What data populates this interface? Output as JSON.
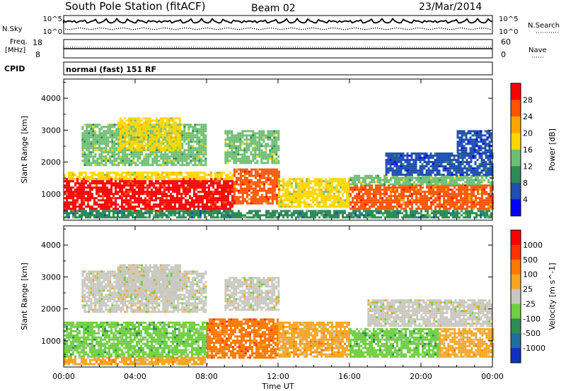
{
  "header": {
    "station": "South Pole Station (fitACF)",
    "beam": "Beam 02",
    "date": "23/Mar/2014"
  },
  "top_strip": {
    "nsky_label": "N.Sky",
    "nsky_ticks": [
      "10^5",
      "10^0"
    ],
    "nsearch_label": "N.Search",
    "nsearch_ticks": [
      "10^5",
      "10^0"
    ],
    "freq_label_1": "Freq.",
    "freq_label_2": "[MHz]",
    "freq_ticks": [
      "18",
      "8"
    ],
    "nave_label": "Nave",
    "nave_ticks": [
      "60",
      "0"
    ],
    "cpid_label": "CPID",
    "cpid_value": "normal (fast) 151 RF"
  },
  "colors": {
    "power_scale": [
      "#0000ff",
      "#1f4faf",
      "#2e8b57",
      "#6fbf73",
      "#ffd700",
      "#ffa500",
      "#ff5500",
      "#ff0000"
    ],
    "velocity_scale": [
      "#1030c0",
      "#1e6f9f",
      "#2e8b57",
      "#6fcf40",
      "#c8c8c0",
      "#f5a623",
      "#ff7700",
      "#ff3300",
      "#ff0000"
    ]
  },
  "chart_data": [
    {
      "type": "heatmap",
      "xlabel": "Time UT",
      "ylabel": "Slant Range [km]",
      "x_ticks": [
        "00:00",
        "04:00",
        "08:00",
        "12:00",
        "16:00",
        "20:00",
        "00:00"
      ],
      "xlim": [
        0,
        24
      ],
      "y_ticks": [
        "1000",
        "2000",
        "3000",
        "4000"
      ],
      "ylim": [
        180,
        4600
      ],
      "colorbar_label": "Power [dB]",
      "colorbar_ticks": [
        "28",
        "24",
        "20",
        "16",
        "12",
        "8",
        "4"
      ],
      "clim": [
        0,
        32
      ],
      "regions": [
        {
          "t0": 0,
          "t1": 9.5,
          "r0": 500,
          "r1": 1500,
          "value": 28
        },
        {
          "t0": 0,
          "t1": 9.5,
          "r0": 1500,
          "r1": 1700,
          "value": 18
        },
        {
          "t0": 9.5,
          "t1": 12,
          "r0": 700,
          "r1": 1800,
          "value": 26
        },
        {
          "t0": 12,
          "t1": 16,
          "r0": 600,
          "r1": 1500,
          "value": 16
        },
        {
          "t0": 16,
          "t1": 24,
          "r0": 550,
          "r1": 1300,
          "value": 26
        },
        {
          "t0": 16,
          "t1": 24,
          "r0": 1300,
          "r1": 1600,
          "value": 12
        },
        {
          "t0": 0,
          "t1": 24,
          "r0": 250,
          "r1": 500,
          "value": 10
        },
        {
          "t0": 1,
          "t1": 8,
          "r0": 1900,
          "r1": 3200,
          "value": 14
        },
        {
          "t0": 3,
          "t1": 6.5,
          "r0": 2400,
          "r1": 3400,
          "value": 16
        },
        {
          "t0": 9,
          "t1": 12,
          "r0": 2000,
          "r1": 3000,
          "value": 14
        },
        {
          "t0": 18,
          "t1": 24,
          "r0": 1600,
          "r1": 2300,
          "value": 6
        },
        {
          "t0": 22,
          "t1": 24,
          "r0": 2300,
          "r1": 3000,
          "value": 6
        }
      ]
    },
    {
      "type": "heatmap",
      "xlabel": "Time UT",
      "ylabel": "Slant Range [km]",
      "x_ticks": [
        "00:00",
        "04:00",
        "08:00",
        "12:00",
        "16:00",
        "20:00",
        "00:00"
      ],
      "xlim": [
        0,
        24
      ],
      "y_ticks": [
        "1000",
        "2000",
        "3000",
        "4000"
      ],
      "ylim": [
        180,
        4600
      ],
      "colorbar_label": "Velocity [m s^-1]",
      "colorbar_ticks": [
        "1000",
        "500",
        "100",
        "25",
        "-25",
        "-100",
        "-500",
        "-1000"
      ],
      "clim": [
        -1200,
        1200
      ],
      "regions": [
        {
          "t0": 0,
          "t1": 8,
          "r0": 500,
          "r1": 1600,
          "value": -300
        },
        {
          "t0": 0,
          "t1": 8,
          "r0": 250,
          "r1": 500,
          "value": 150
        },
        {
          "t0": 8,
          "t1": 12,
          "r0": 500,
          "r1": 1700,
          "value": 600
        },
        {
          "t0": 12,
          "t1": 16,
          "r0": 500,
          "r1": 1600,
          "value": 200
        },
        {
          "t0": 16,
          "t1": 21,
          "r0": 500,
          "r1": 1400,
          "value": -400
        },
        {
          "t0": 21,
          "t1": 24,
          "r0": 500,
          "r1": 1400,
          "value": 150
        },
        {
          "t0": 1,
          "t1": 8,
          "r0": 1900,
          "r1": 3200,
          "value": 0
        },
        {
          "t0": 3,
          "t1": 6.5,
          "r0": 2400,
          "r1": 3400,
          "value": 0
        },
        {
          "t0": 9,
          "t1": 12,
          "r0": 2000,
          "r1": 3000,
          "value": 0
        },
        {
          "t0": 17,
          "t1": 24,
          "r0": 1500,
          "r1": 2300,
          "value": -50
        }
      ]
    }
  ]
}
